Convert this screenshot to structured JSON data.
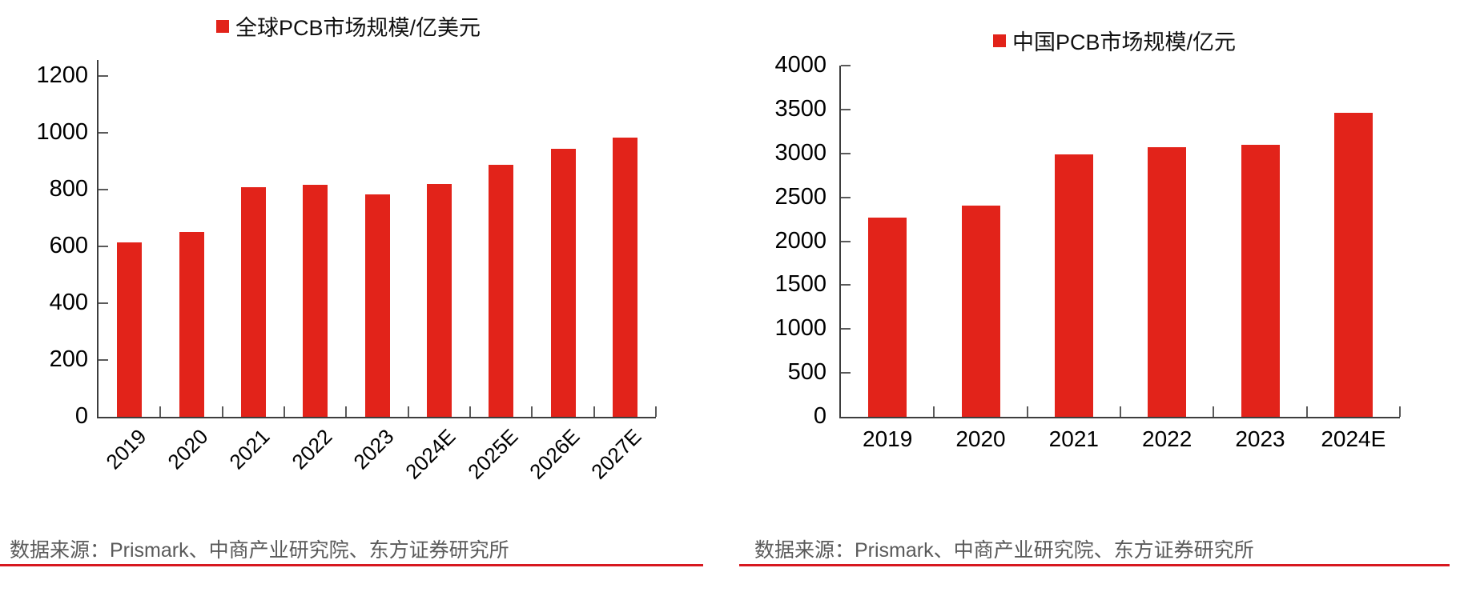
{
  "accent_color": "#e2231a",
  "rule_color": "#d7181f",
  "source_text_color": "#5a5a5a",
  "sources": [
    "数据来源：Prismark、中商产业研究院、东方证券研究所",
    "数据来源：Prismark、中商产业研究院、东方证券研究所"
  ],
  "chart_data": [
    {
      "type": "bar",
      "title": "全球PCB市场规模/亿美元",
      "legend_position": "top",
      "grid": false,
      "categories": [
        "2019",
        "2020",
        "2021",
        "2022",
        "2023",
        "2024E",
        "2025E",
        "2026E",
        "2027E"
      ],
      "values": [
        613,
        652,
        809,
        817,
        784,
        819,
        886,
        943,
        982
      ],
      "xlabel": "",
      "ylabel": "",
      "ylim": [
        0,
        1200
      ],
      "ytick_step": 200,
      "x_label_rotation": -45,
      "bar_color": "#e2231a"
    },
    {
      "type": "bar",
      "title": "中国PCB市场规模/亿元",
      "legend_position": "top",
      "grid": false,
      "categories": [
        "2019",
        "2020",
        "2021",
        "2022",
        "2023",
        "2024E"
      ],
      "values": [
        2270,
        2407,
        2993,
        3070,
        3094,
        3462
      ],
      "xlabel": "",
      "ylabel": "",
      "ylim": [
        0,
        4000
      ],
      "ytick_step": 500,
      "x_label_rotation": 0,
      "bar_color": "#e2231a"
    }
  ]
}
